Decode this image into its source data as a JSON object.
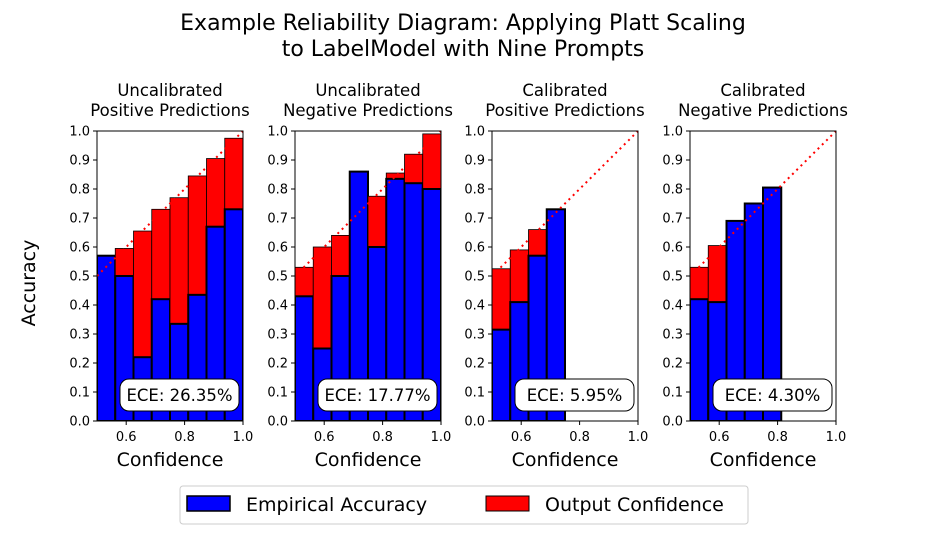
{
  "figure": {
    "title_line1": "Example Reliability Diagram: Applying Platt Scaling",
    "title_line2": "to LabelModel with Nine Prompts",
    "ylabel": "Accuracy",
    "legend": {
      "items": [
        {
          "label": "Empirical Accuracy",
          "color": "#0000ff"
        },
        {
          "label": "Output Confidence",
          "color": "#ff0000"
        }
      ],
      "placement": "bottom-center"
    }
  },
  "chart_data": [
    {
      "type": "bar",
      "title_line1": "Uncalibrated",
      "title_line2": "Positive Predictions",
      "xlabel": "Confidence",
      "xlim": [
        0.5,
        1.0
      ],
      "ylim": [
        0.0,
        1.0
      ],
      "xticks": [
        "0.6",
        "0.8",
        "1.0"
      ],
      "yticks": [
        "0.0",
        "0.1",
        "0.2",
        "0.3",
        "0.4",
        "0.5",
        "0.6",
        "0.7",
        "0.8",
        "0.9",
        "1.0"
      ],
      "show_yticks": true,
      "bin_width": 0.0625,
      "bin_starts": [
        0.5,
        0.5625,
        0.625,
        0.6875,
        0.75,
        0.8125,
        0.875,
        0.9375
      ],
      "accuracy": [
        0.57,
        0.5,
        0.22,
        0.42,
        0.335,
        0.435,
        0.67,
        0.73
      ],
      "confidence": [
        0.57,
        0.595,
        0.655,
        0.73,
        0.77,
        0.845,
        0.905,
        0.975
      ],
      "ece_label": "ECE: 26.35%"
    },
    {
      "type": "bar",
      "title_line1": "Uncalibrated",
      "title_line2": "Negative Predictions",
      "xlabel": "Confidence",
      "xlim": [
        0.5,
        1.0
      ],
      "ylim": [
        0.0,
        1.0
      ],
      "xticks": [
        "0.6",
        "0.8",
        "1.0"
      ],
      "yticks": [
        "0.0",
        "0.1",
        "0.2",
        "0.3",
        "0.4",
        "0.5",
        "0.6",
        "0.7",
        "0.8",
        "0.9",
        "1.0"
      ],
      "show_yticks": true,
      "bin_width": 0.0625,
      "bin_starts": [
        0.5,
        0.5625,
        0.625,
        0.6875,
        0.75,
        0.8125,
        0.875,
        0.9375
      ],
      "accuracy": [
        0.43,
        0.25,
        0.5,
        0.86,
        0.6,
        0.835,
        0.82,
        0.8
      ],
      "confidence": [
        0.53,
        0.6,
        0.64,
        0.86,
        0.775,
        0.855,
        0.92,
        0.99
      ],
      "ece_label": "ECE: 17.77%"
    },
    {
      "type": "bar",
      "title_line1": "Calibrated",
      "title_line2": "Positive Predictions",
      "xlabel": "Confidence",
      "xlim": [
        0.5,
        1.0
      ],
      "ylim": [
        0.0,
        1.0
      ],
      "xticks": [
        "0.6",
        "0.8",
        "1.0"
      ],
      "yticks": [
        "0.0",
        "0.1",
        "0.2",
        "0.3",
        "0.4",
        "0.5",
        "0.6",
        "0.7",
        "0.8",
        "0.9",
        "1.0"
      ],
      "show_yticks": true,
      "bin_width": 0.0625,
      "bin_starts": [
        0.5,
        0.5625,
        0.625,
        0.6875
      ],
      "accuracy": [
        0.315,
        0.41,
        0.57,
        0.73
      ],
      "confidence": [
        0.525,
        0.59,
        0.66,
        0.73
      ],
      "ece_label": "ECE: 5.95%"
    },
    {
      "type": "bar",
      "title_line1": "Calibrated",
      "title_line2": "Negative Predictions",
      "xlabel": "Confidence",
      "xlim": [
        0.5,
        1.0
      ],
      "ylim": [
        0.0,
        1.0
      ],
      "xticks": [
        "0.6",
        "0.8",
        "1.0"
      ],
      "yticks": [
        "0.0",
        "0.1",
        "0.2",
        "0.3",
        "0.4",
        "0.5",
        "0.6",
        "0.7",
        "0.8",
        "0.9",
        "1.0"
      ],
      "show_yticks": true,
      "bin_width": 0.0625,
      "bin_starts": [
        0.5,
        0.5625,
        0.625,
        0.6875,
        0.75
      ],
      "accuracy": [
        0.42,
        0.41,
        0.69,
        0.75,
        0.805
      ],
      "confidence": [
        0.53,
        0.605,
        0.69,
        0.75,
        0.805
      ],
      "ece_label": "ECE: 4.30%"
    }
  ]
}
